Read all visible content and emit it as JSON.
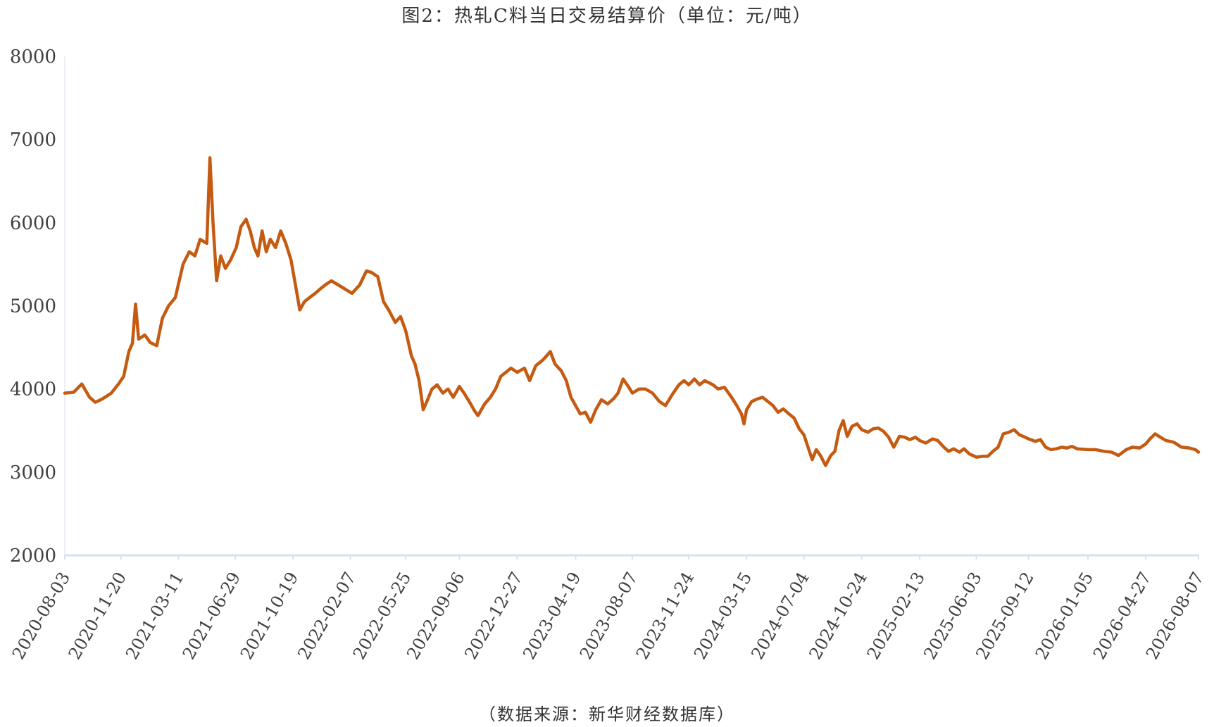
{
  "chart_data": {
    "type": "line",
    "title": "图2：热轧C料当日交易结算价（单位：元/吨）",
    "source": "（数据来源：新华财经数据库）",
    "xlabel": "",
    "ylabel": "",
    "ylim": [
      2000,
      8000
    ],
    "y_ticks": [
      2000,
      3000,
      4000,
      5000,
      6000,
      7000,
      8000
    ],
    "x_tick_labels": [
      "2020-08-03",
      "2020-11-20",
      "2021-03-11",
      "2021-06-29",
      "2021-10-19",
      "2022-02-07",
      "2022-05-25",
      "2022-09-06",
      "2022-12-27",
      "2023-04-19",
      "2023-08-07",
      "2023-11-24",
      "2024-03-15",
      "2024-07-04",
      "2024-10-24",
      "2025-02-13",
      "2025-06-03",
      "2025-09-12",
      "2026-01-05",
      "2026-04-27",
      "2026-08-07"
    ],
    "grid": false,
    "line_color": "#C55A11",
    "axis_color": "#D9DEF0",
    "series": [
      {
        "points": [
          [
            "2020-08-03",
            3950
          ],
          [
            "2020-08-20",
            3960
          ],
          [
            "2020-09-05",
            4060
          ],
          [
            "2020-09-20",
            3900
          ],
          [
            "2020-10-01",
            3840
          ],
          [
            "2020-10-15",
            3880
          ],
          [
            "2020-11-01",
            3950
          ],
          [
            "2020-11-15",
            4060
          ],
          [
            "2020-11-25",
            4150
          ],
          [
            "2020-12-05",
            4450
          ],
          [
            "2020-12-12",
            4550
          ],
          [
            "2020-12-18",
            5020
          ],
          [
            "2020-12-24",
            4600
          ],
          [
            "2021-01-05",
            4650
          ],
          [
            "2021-01-15",
            4560
          ],
          [
            "2021-01-28",
            4520
          ],
          [
            "2021-02-08",
            4850
          ],
          [
            "2021-02-20",
            5000
          ],
          [
            "2021-03-05",
            5100
          ],
          [
            "2021-03-20",
            5500
          ],
          [
            "2021-04-01",
            5650
          ],
          [
            "2021-04-12",
            5600
          ],
          [
            "2021-04-22",
            5800
          ],
          [
            "2021-05-05",
            5750
          ],
          [
            "2021-05-11",
            6780
          ],
          [
            "2021-05-17",
            6000
          ],
          [
            "2021-05-24",
            5300
          ],
          [
            "2021-06-01",
            5600
          ],
          [
            "2021-06-10",
            5450
          ],
          [
            "2021-06-20",
            5550
          ],
          [
            "2021-07-01",
            5700
          ],
          [
            "2021-07-10",
            5950
          ],
          [
            "2021-07-20",
            6040
          ],
          [
            "2021-07-28",
            5900
          ],
          [
            "2021-08-05",
            5700
          ],
          [
            "2021-08-12",
            5600
          ],
          [
            "2021-08-20",
            5900
          ],
          [
            "2021-08-28",
            5650
          ],
          [
            "2021-09-05",
            5800
          ],
          [
            "2021-09-15",
            5700
          ],
          [
            "2021-09-25",
            5900
          ],
          [
            "2021-10-05",
            5750
          ],
          [
            "2021-10-15",
            5550
          ],
          [
            "2021-10-25",
            5200
          ],
          [
            "2021-11-01",
            4950
          ],
          [
            "2021-11-10",
            5050
          ],
          [
            "2021-11-20",
            5100
          ],
          [
            "2021-12-01",
            5150
          ],
          [
            "2021-12-10",
            5200
          ],
          [
            "2021-12-20",
            5250
          ],
          [
            "2022-01-01",
            5300
          ],
          [
            "2022-01-15",
            5250
          ],
          [
            "2022-01-28",
            5200
          ],
          [
            "2022-02-10",
            5150
          ],
          [
            "2022-02-25",
            5250
          ],
          [
            "2022-03-10",
            5420
          ],
          [
            "2022-03-20",
            5400
          ],
          [
            "2022-04-01",
            5350
          ],
          [
            "2022-04-12",
            5050
          ],
          [
            "2022-04-22",
            4950
          ],
          [
            "2022-05-05",
            4800
          ],
          [
            "2022-05-15",
            4870
          ],
          [
            "2022-05-25",
            4700
          ],
          [
            "2022-06-05",
            4400
          ],
          [
            "2022-06-12",
            4300
          ],
          [
            "2022-06-20",
            4100
          ],
          [
            "2022-06-28",
            3750
          ],
          [
            "2022-07-05",
            3850
          ],
          [
            "2022-07-15",
            4000
          ],
          [
            "2022-07-25",
            4050
          ],
          [
            "2022-08-05",
            3950
          ],
          [
            "2022-08-15",
            4000
          ],
          [
            "2022-08-25",
            3900
          ],
          [
            "2022-09-06",
            4030
          ],
          [
            "2022-09-15",
            3950
          ],
          [
            "2022-09-25",
            3850
          ],
          [
            "2022-10-05",
            3740
          ],
          [
            "2022-10-12",
            3680
          ],
          [
            "2022-10-25",
            3820
          ],
          [
            "2022-11-05",
            3900
          ],
          [
            "2022-11-15",
            4000
          ],
          [
            "2022-11-25",
            4150
          ],
          [
            "2022-12-05",
            4200
          ],
          [
            "2022-12-15",
            4250
          ],
          [
            "2022-12-27",
            4200
          ],
          [
            "2023-01-10",
            4250
          ],
          [
            "2023-01-20",
            4100
          ],
          [
            "2023-02-01",
            4280
          ],
          [
            "2023-02-15",
            4350
          ],
          [
            "2023-03-01",
            4450
          ],
          [
            "2023-03-10",
            4300
          ],
          [
            "2023-03-22",
            4220
          ],
          [
            "2023-04-01",
            4100
          ],
          [
            "2023-04-10",
            3900
          ],
          [
            "2023-04-19",
            3800
          ],
          [
            "2023-04-28",
            3700
          ],
          [
            "2023-05-08",
            3720
          ],
          [
            "2023-05-18",
            3600
          ],
          [
            "2023-05-28",
            3750
          ],
          [
            "2023-06-08",
            3870
          ],
          [
            "2023-06-20",
            3820
          ],
          [
            "2023-07-01",
            3880
          ],
          [
            "2023-07-10",
            3950
          ],
          [
            "2023-07-20",
            4120
          ],
          [
            "2023-07-30",
            4030
          ],
          [
            "2023-08-07",
            3950
          ],
          [
            "2023-08-20",
            4000
          ],
          [
            "2023-09-01",
            4000
          ],
          [
            "2023-09-15",
            3950
          ],
          [
            "2023-09-28",
            3850
          ],
          [
            "2023-10-10",
            3800
          ],
          [
            "2023-10-25",
            3950
          ],
          [
            "2023-11-05",
            4050
          ],
          [
            "2023-11-15",
            4100
          ],
          [
            "2023-11-24",
            4050
          ],
          [
            "2023-12-05",
            4120
          ],
          [
            "2023-12-15",
            4050
          ],
          [
            "2023-12-25",
            4100
          ],
          [
            "2024-01-10",
            4050
          ],
          [
            "2024-01-20",
            4000
          ],
          [
            "2024-02-01",
            4020
          ],
          [
            "2024-02-15",
            3900
          ],
          [
            "2024-02-25",
            3800
          ],
          [
            "2024-03-05",
            3700
          ],
          [
            "2024-03-10",
            3580
          ],
          [
            "2024-03-15",
            3750
          ],
          [
            "2024-03-25",
            3850
          ],
          [
            "2024-04-05",
            3880
          ],
          [
            "2024-04-15",
            3900
          ],
          [
            "2024-04-25",
            3850
          ],
          [
            "2024-05-05",
            3800
          ],
          [
            "2024-05-15",
            3720
          ],
          [
            "2024-05-25",
            3760
          ],
          [
            "2024-06-05",
            3700
          ],
          [
            "2024-06-15",
            3650
          ],
          [
            "2024-06-25",
            3520
          ],
          [
            "2024-07-04",
            3450
          ],
          [
            "2024-07-12",
            3300
          ],
          [
            "2024-07-20",
            3150
          ],
          [
            "2024-07-28",
            3270
          ],
          [
            "2024-08-05",
            3200
          ],
          [
            "2024-08-15",
            3080
          ],
          [
            "2024-08-25",
            3200
          ],
          [
            "2024-09-02",
            3250
          ],
          [
            "2024-09-10",
            3500
          ],
          [
            "2024-09-18",
            3620
          ],
          [
            "2024-09-26",
            3430
          ],
          [
            "2024-10-05",
            3550
          ],
          [
            "2024-10-15",
            3580
          ],
          [
            "2024-10-24",
            3510
          ],
          [
            "2024-11-05",
            3480
          ],
          [
            "2024-11-15",
            3520
          ],
          [
            "2024-11-25",
            3530
          ],
          [
            "2024-12-05",
            3490
          ],
          [
            "2024-12-15",
            3420
          ],
          [
            "2024-12-25",
            3300
          ],
          [
            "2025-01-05",
            3430
          ],
          [
            "2025-01-15",
            3420
          ],
          [
            "2025-01-25",
            3390
          ],
          [
            "2025-02-05",
            3420
          ],
          [
            "2025-02-13",
            3380
          ],
          [
            "2025-02-25",
            3350
          ],
          [
            "2025-03-10",
            3400
          ],
          [
            "2025-03-20",
            3380
          ],
          [
            "2025-04-01",
            3300
          ],
          [
            "2025-04-10",
            3250
          ],
          [
            "2025-04-20",
            3280
          ],
          [
            "2025-05-01",
            3240
          ],
          [
            "2025-05-10",
            3280
          ],
          [
            "2025-05-20",
            3220
          ],
          [
            "2025-06-03",
            3180
          ],
          [
            "2025-06-15",
            3190
          ],
          [
            "2025-06-25",
            3190
          ],
          [
            "2025-07-05",
            3250
          ],
          [
            "2025-07-15",
            3300
          ],
          [
            "2025-07-25",
            3460
          ],
          [
            "2025-08-05",
            3480
          ],
          [
            "2025-08-15",
            3510
          ],
          [
            "2025-08-25",
            3450
          ],
          [
            "2025-09-05",
            3420
          ],
          [
            "2025-09-12",
            3400
          ],
          [
            "2025-09-25",
            3370
          ],
          [
            "2025-10-05",
            3390
          ],
          [
            "2025-10-15",
            3300
          ],
          [
            "2025-10-25",
            3270
          ],
          [
            "2025-11-05",
            3280
          ],
          [
            "2025-11-15",
            3300
          ],
          [
            "2025-11-25",
            3290
          ],
          [
            "2025-12-05",
            3310
          ],
          [
            "2025-12-15",
            3280
          ],
          [
            "2026-01-05",
            3270
          ],
          [
            "2026-01-20",
            3270
          ],
          [
            "2026-02-05",
            3250
          ],
          [
            "2026-02-20",
            3240
          ],
          [
            "2026-03-05",
            3200
          ],
          [
            "2026-03-20",
            3270
          ],
          [
            "2026-04-01",
            3300
          ],
          [
            "2026-04-15",
            3290
          ],
          [
            "2026-04-27",
            3340
          ],
          [
            "2026-05-05",
            3400
          ],
          [
            "2026-05-15",
            3460
          ],
          [
            "2026-05-25",
            3420
          ],
          [
            "2026-06-05",
            3380
          ],
          [
            "2026-06-20",
            3360
          ],
          [
            "2026-07-05",
            3300
          ],
          [
            "2026-07-20",
            3290
          ],
          [
            "2026-08-01",
            3270
          ],
          [
            "2026-08-07",
            3240
          ]
        ]
      }
    ]
  }
}
